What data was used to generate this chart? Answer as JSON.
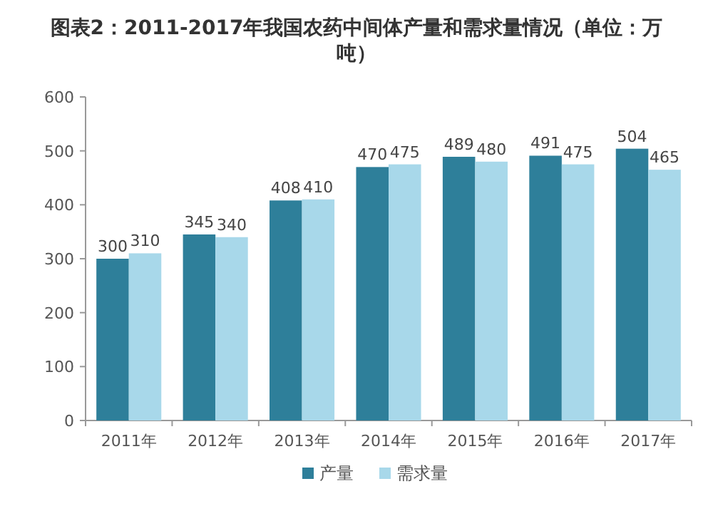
{
  "chart_data": {
    "type": "bar",
    "title": "图表2：2011-2017年我国农药中间体产量和需求量情况（单位：万吨）",
    "categories": [
      "2011年",
      "2012年",
      "2013年",
      "2014年",
      "2015年",
      "2016年",
      "2017年"
    ],
    "series": [
      {
        "name": "产量",
        "color": "#2e7f9a",
        "values": [
          300,
          345,
          408,
          470,
          489,
          491,
          504
        ]
      },
      {
        "name": "需求量",
        "color": "#a8d8ea",
        "values": [
          310,
          340,
          410,
          475,
          480,
          475,
          465
        ]
      }
    ],
    "ylim": [
      0,
      600
    ],
    "yticks": [
      0,
      100,
      200,
      300,
      400,
      500,
      600
    ],
    "grid": false,
    "data_labels": true,
    "legend": "bottom"
  }
}
